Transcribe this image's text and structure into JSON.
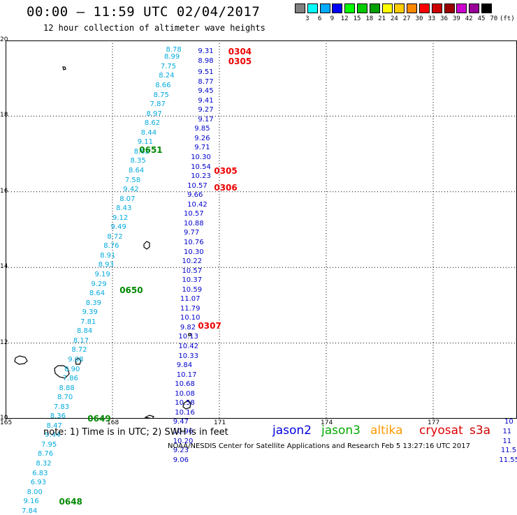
{
  "header": {
    "title": "00:00 – 11:59 UTC 02/04/2017",
    "subtitle": "12 hour collection of altimeter wave heights"
  },
  "legend": {
    "unit": "(ft)",
    "colors": [
      "#808080",
      "#00ffff",
      "#00aaff",
      "#0000ff",
      "#00ff00",
      "#00cc00",
      "#00a000",
      "#ffff00",
      "#ffcc00",
      "#ff8800",
      "#ff0000",
      "#cc0000",
      "#990000",
      "#cc00cc",
      "#990099",
      "#000000"
    ],
    "labels": [
      "3",
      "6",
      "9",
      "12",
      "15",
      "18",
      "21",
      "24",
      "27",
      "30",
      "33",
      "36",
      "39",
      "42",
      "45",
      "70"
    ]
  },
  "axes": {
    "x_ticks": [
      "165",
      "168",
      "171",
      "174",
      "177"
    ],
    "y_ticks": [
      "20",
      "18",
      "16",
      "14",
      "12",
      "10"
    ]
  },
  "chart_data": {
    "type": "scatter",
    "x_range": [
      165,
      179.3
    ],
    "y_range": [
      10,
      20
    ],
    "tracks": [
      {
        "name": "jason2",
        "color": "#0000cc",
        "passes": [
          {
            "label": "0304",
            "color": "#ee0000",
            "lon": 171.25,
            "lat": 19.7
          },
          {
            "label": "0305",
            "color": "#ee0000",
            "lon": 171.25,
            "lat": 19.45
          },
          {
            "label": "0305",
            "color": "#ee0000",
            "lon": 170.85,
            "lat": 16.55
          },
          {
            "label": "0306",
            "color": "#ee0000",
            "lon": 170.85,
            "lat": 16.1
          },
          {
            "label": "0307",
            "color": "#ee0000",
            "lon": 170.4,
            "lat": 12.45
          }
        ],
        "points": [
          {
            "v": "9.31",
            "lon": 170.4,
            "lat": 19.7
          },
          {
            "v": "8.98",
            "lon": 170.4,
            "lat": 19.45
          },
          {
            "v": "9.51",
            "lon": 170.4,
            "lat": 19.15
          },
          {
            "v": "8.77",
            "lon": 170.4,
            "lat": 18.9
          },
          {
            "v": "9.45",
            "lon": 170.4,
            "lat": 18.65
          },
          {
            "v": "9.41",
            "lon": 170.4,
            "lat": 18.4
          },
          {
            "v": "9.27",
            "lon": 170.4,
            "lat": 18.15
          },
          {
            "v": "9.17",
            "lon": 170.4,
            "lat": 17.9
          },
          {
            "v": "9.85",
            "lon": 170.3,
            "lat": 17.65
          },
          {
            "v": "9.26",
            "lon": 170.3,
            "lat": 17.4
          },
          {
            "v": "9.71",
            "lon": 170.3,
            "lat": 17.15
          },
          {
            "v": "10.30",
            "lon": 170.2,
            "lat": 16.9
          },
          {
            "v": "10.54",
            "lon": 170.2,
            "lat": 16.65
          },
          {
            "v": "10.23",
            "lon": 170.2,
            "lat": 16.4
          },
          {
            "v": "10.57",
            "lon": 170.1,
            "lat": 16.15
          },
          {
            "v": "9.66",
            "lon": 170.1,
            "lat": 15.9
          },
          {
            "v": "10.42",
            "lon": 170.1,
            "lat": 15.65
          },
          {
            "v": "10.57",
            "lon": 170.0,
            "lat": 15.4
          },
          {
            "v": "10.88",
            "lon": 170.0,
            "lat": 15.15
          },
          {
            "v": "9.77",
            "lon": 170.0,
            "lat": 14.9
          },
          {
            "v": "10.76",
            "lon": 170.0,
            "lat": 14.65
          },
          {
            "v": "10.30",
            "lon": 170.0,
            "lat": 14.4
          },
          {
            "v": "10.22",
            "lon": 169.95,
            "lat": 14.15
          },
          {
            "v": "10.57",
            "lon": 169.95,
            "lat": 13.9
          },
          {
            "v": "10.37",
            "lon": 169.95,
            "lat": 13.65
          },
          {
            "v": "10.59",
            "lon": 169.95,
            "lat": 13.4
          },
          {
            "v": "11.07",
            "lon": 169.9,
            "lat": 13.15
          },
          {
            "v": "11.79",
            "lon": 169.9,
            "lat": 12.9
          },
          {
            "v": "10.10",
            "lon": 169.9,
            "lat": 12.65
          },
          {
            "v": "9.82",
            "lon": 169.9,
            "lat": 12.4
          },
          {
            "v": "10.13",
            "lon": 169.85,
            "lat": 12.15
          },
          {
            "v": "10.42",
            "lon": 169.85,
            "lat": 11.9
          },
          {
            "v": "10.33",
            "lon": 169.85,
            "lat": 11.65
          },
          {
            "v": "9.84",
            "lon": 169.8,
            "lat": 11.4
          },
          {
            "v": "10.17",
            "lon": 169.8,
            "lat": 11.15
          },
          {
            "v": "10.68",
            "lon": 169.75,
            "lat": 10.9
          },
          {
            "v": "10.08",
            "lon": 169.75,
            "lat": 10.65
          },
          {
            "v": "10.58",
            "lon": 169.75,
            "lat": 10.4
          },
          {
            "v": "10.16",
            "lon": 169.75,
            "lat": 10.15
          },
          {
            "v": "9.47",
            "lon": 169.7,
            "lat": 9.9
          },
          {
            "v": "10.96",
            "lon": 169.7,
            "lat": 9.65
          },
          {
            "v": "10.20",
            "lon": 169.7,
            "lat": 9.4
          },
          {
            "v": "9.23",
            "lon": 169.7,
            "lat": 9.15
          },
          {
            "v": "9.06",
            "lon": 169.7,
            "lat": 8.9
          }
        ]
      },
      {
        "name": "jason3",
        "color": "#00aadd",
        "passes": [
          {
            "label": "0651",
            "color": "#008800",
            "lon": 168.75,
            "lat": 17.1
          },
          {
            "label": "0650",
            "color": "#008800",
            "lon": 168.2,
            "lat": 13.4
          },
          {
            "label": "0649",
            "color": "#008800",
            "lon": 167.3,
            "lat": 10.0
          },
          {
            "label": "0648",
            "color": "#008800",
            "lon": 166.5,
            "lat": 7.8
          }
        ],
        "points": [
          {
            "v": "8.78",
            "lon": 169.5,
            "lat": 19.75
          },
          {
            "v": "8.99",
            "lon": 169.45,
            "lat": 19.55
          },
          {
            "v": "7.75",
            "lon": 169.35,
            "lat": 19.3
          },
          {
            "v": "8.24",
            "lon": 169.3,
            "lat": 19.05
          },
          {
            "v": "8.66",
            "lon": 169.2,
            "lat": 18.8
          },
          {
            "v": "8.75",
            "lon": 169.15,
            "lat": 18.55
          },
          {
            "v": "7.87",
            "lon": 169.05,
            "lat": 18.3
          },
          {
            "v": "8.97",
            "lon": 168.95,
            "lat": 18.05
          },
          {
            "v": "8.62",
            "lon": 168.9,
            "lat": 17.8
          },
          {
            "v": "8.44",
            "lon": 168.8,
            "lat": 17.55
          },
          {
            "v": "9.11",
            "lon": 168.7,
            "lat": 17.3
          },
          {
            "v": "8.62",
            "lon": 168.6,
            "lat": 17.05
          },
          {
            "v": "8.35",
            "lon": 168.5,
            "lat": 16.8
          },
          {
            "v": "8.64",
            "lon": 168.45,
            "lat": 16.55
          },
          {
            "v": "7.58",
            "lon": 168.35,
            "lat": 16.3
          },
          {
            "v": "9.42",
            "lon": 168.3,
            "lat": 16.05
          },
          {
            "v": "8.07",
            "lon": 168.2,
            "lat": 15.8
          },
          {
            "v": "8.43",
            "lon": 168.1,
            "lat": 15.55
          },
          {
            "v": "9.12",
            "lon": 168.0,
            "lat": 15.3
          },
          {
            "v": "9.49",
            "lon": 167.95,
            "lat": 15.05
          },
          {
            "v": "8.72",
            "lon": 167.85,
            "lat": 14.8
          },
          {
            "v": "8.76",
            "lon": 167.75,
            "lat": 14.55
          },
          {
            "v": "8.91",
            "lon": 167.65,
            "lat": 14.3
          },
          {
            "v": "8.93",
            "lon": 167.6,
            "lat": 14.05
          },
          {
            "v": "9.19",
            "lon": 167.5,
            "lat": 13.8
          },
          {
            "v": "9.29",
            "lon": 167.4,
            "lat": 13.55
          },
          {
            "v": "8.64",
            "lon": 167.35,
            "lat": 13.3
          },
          {
            "v": "8.39",
            "lon": 167.25,
            "lat": 13.05
          },
          {
            "v": "9.39",
            "lon": 167.15,
            "lat": 12.8
          },
          {
            "v": "7.81",
            "lon": 167.1,
            "lat": 12.55
          },
          {
            "v": "8.84",
            "lon": 167.0,
            "lat": 12.3
          },
          {
            "v": "8.17",
            "lon": 166.9,
            "lat": 12.05
          },
          {
            "v": "8.72",
            "lon": 166.85,
            "lat": 11.8
          },
          {
            "v": "9.08",
            "lon": 166.75,
            "lat": 11.55
          },
          {
            "v": "8.90",
            "lon": 166.65,
            "lat": 11.3
          },
          {
            "v": "7.86",
            "lon": 166.6,
            "lat": 11.05
          },
          {
            "v": "8.88",
            "lon": 166.5,
            "lat": 10.8
          },
          {
            "v": "8.70",
            "lon": 166.45,
            "lat": 10.55
          },
          {
            "v": "7.83",
            "lon": 166.35,
            "lat": 10.3
          },
          {
            "v": "8.36",
            "lon": 166.25,
            "lat": 10.05
          },
          {
            "v": "8.47",
            "lon": 166.15,
            "lat": 9.8
          },
          {
            "v": "9.44",
            "lon": 166.1,
            "lat": 9.55
          },
          {
            "v": "7.95",
            "lon": 166.0,
            "lat": 9.3
          },
          {
            "v": "8.76",
            "lon": 165.9,
            "lat": 9.05
          },
          {
            "v": "8.32",
            "lon": 165.85,
            "lat": 8.8
          },
          {
            "v": "6.83",
            "lon": 165.75,
            "lat": 8.55
          },
          {
            "v": "6.93",
            "lon": 165.7,
            "lat": 8.3
          },
          {
            "v": "8.00",
            "lon": 165.6,
            "lat": 8.05
          },
          {
            "v": "9.16",
            "lon": 165.5,
            "lat": 7.8
          },
          {
            "v": "7.84",
            "lon": 165.45,
            "lat": 7.55
          }
        ]
      },
      {
        "name": "s3a",
        "color": "#0000cc",
        "passes": [],
        "points": [
          {
            "v": "10",
            "lon": 179.0,
            "lat": 9.9
          },
          {
            "v": "11",
            "lon": 178.95,
            "lat": 9.65
          },
          {
            "v": "11",
            "lon": 178.95,
            "lat": 9.4
          },
          {
            "v": "11.5",
            "lon": 178.9,
            "lat": 9.15
          },
          {
            "v": "11.55",
            "lon": 178.85,
            "lat": 8.9
          }
        ]
      }
    ]
  },
  "footer": {
    "note": "note: 1) Time is in UTC; 2) SWH is in feet",
    "satellites": [
      {
        "name": "jason2",
        "color": "#0000dd"
      },
      {
        "name": "jason3",
        "color": "#00aa00"
      },
      {
        "name": "altika",
        "color": "#ff9900"
      },
      {
        "name": "cryosat",
        "color": "#dd0000"
      },
      {
        "name": "s3a",
        "color": "#cc0000"
      }
    ],
    "credit": "NOAA/NESDIS Center for Satellite Applications and Research   Feb  5 13:27:16 UTC 2017"
  }
}
